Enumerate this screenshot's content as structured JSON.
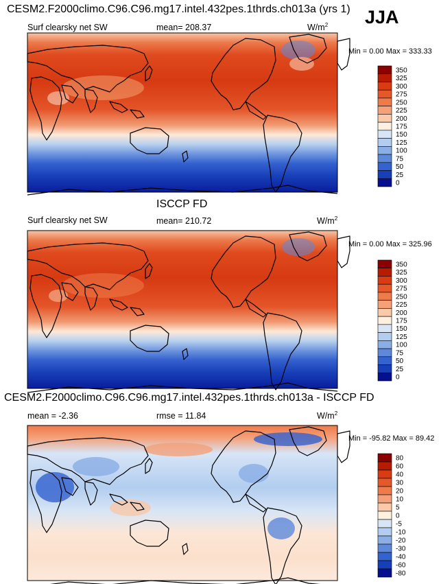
{
  "season": "JJA",
  "chart_data": [
    {
      "type": "heatmap",
      "title": "CESM2.F2000climo.C96.C96.mg17.intel.432pes.1thrds.ch013a (yrs 1)",
      "left_label": "Surf clearsky net SW",
      "mean_text": "mean= 208.37",
      "units_text": "W/m",
      "units_sup": "2",
      "minmax_text": "Min =    0.00 Max = 333.33",
      "levels": [
        "350",
        "325",
        "300",
        "275",
        "250",
        "225",
        "200",
        "175",
        "150",
        "125",
        "100",
        "75",
        "50",
        "25",
        "0"
      ],
      "colors": [
        "#8b0000",
        "#b81c00",
        "#d93b12",
        "#e5582a",
        "#ee7b4b",
        "#f4a17a",
        "#f9c9a9",
        "#fdf0e0",
        "#d7e5f6",
        "#b2cdef",
        "#8aaee6",
        "#5e89db",
        "#3462cf",
        "#173fb8",
        "#06108f"
      ]
    },
    {
      "type": "heatmap",
      "title": "ISCCP FD",
      "left_label": "Surf clearsky net SW",
      "mean_text": "mean= 210.72",
      "units_text": "W/m",
      "units_sup": "2",
      "minmax_text": "Min =    0.00 Max = 325.96",
      "levels": [
        "350",
        "325",
        "300",
        "275",
        "250",
        "225",
        "200",
        "175",
        "150",
        "125",
        "100",
        "75",
        "50",
        "25",
        "0"
      ],
      "colors": [
        "#8b0000",
        "#b81c00",
        "#d93b12",
        "#e5582a",
        "#ee7b4b",
        "#f4a17a",
        "#f9c9a9",
        "#fdf0e0",
        "#d7e5f6",
        "#b2cdef",
        "#8aaee6",
        "#5e89db",
        "#3462cf",
        "#173fb8",
        "#06108f"
      ]
    },
    {
      "type": "heatmap",
      "title": "CESM2.F2000climo.C96.C96.mg17.intel.432pes.1thrds.ch013a - ISCCP FD",
      "left_label": "mean =   -2.36",
      "mean_text": "rmse =   11.84",
      "units_text": "W/m",
      "units_sup": "2",
      "minmax_text": "Min = -95.82 Max =  89.42",
      "levels": [
        "80",
        "60",
        "40",
        "30",
        "20",
        "10",
        "5",
        "0",
        "-5",
        "-10",
        "-20",
        "-30",
        "-40",
        "-60",
        "-80"
      ],
      "colors": [
        "#8b0000",
        "#b81c00",
        "#d93b12",
        "#e5582a",
        "#ee7b4b",
        "#f4a17a",
        "#f9c9a9",
        "#fdf0e0",
        "#d7e5f6",
        "#b2cdef",
        "#8aaee6",
        "#5e89db",
        "#3462cf",
        "#173fb8",
        "#06108f"
      ]
    }
  ]
}
